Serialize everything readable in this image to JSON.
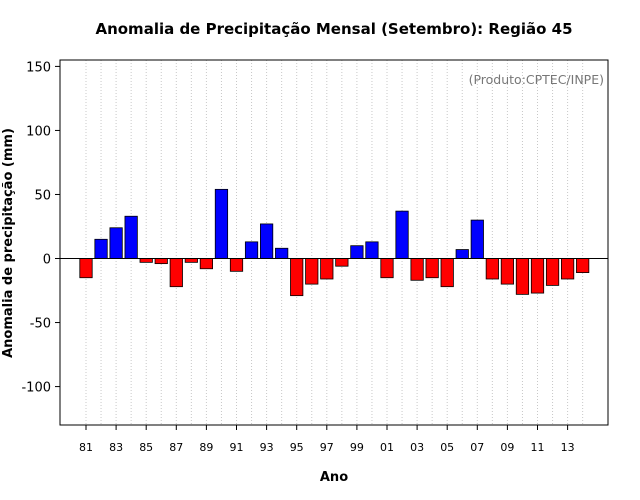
{
  "chart_data": {
    "type": "bar",
    "title": "Anomalia de Precipitação Mensal (Setembro): Região 45",
    "xlabel": "Ano",
    "ylabel": "Anomalia de precipitação (mm)",
    "annotation": "(Produto:CPTEC/INPE)",
    "ylim": [
      -130,
      155
    ],
    "yticks": [
      150,
      100,
      50,
      0,
      -50,
      -100
    ],
    "categories": [
      "81",
      "82",
      "83",
      "84",
      "85",
      "86",
      "87",
      "88",
      "89",
      "90",
      "91",
      "92",
      "93",
      "94",
      "95",
      "96",
      "97",
      "98",
      "99",
      "00",
      "01",
      "02",
      "03",
      "04",
      "05",
      "06",
      "07",
      "08",
      "09",
      "10",
      "11",
      "12",
      "13",
      "14"
    ],
    "xtick_labels": [
      "81",
      "83",
      "85",
      "87",
      "89",
      "91",
      "93",
      "95",
      "97",
      "99",
      "01",
      "03",
      "05",
      "07",
      "09",
      "11",
      "13"
    ],
    "values": [
      -15,
      15,
      24,
      33,
      -3,
      -4,
      -22,
      -3,
      -8,
      54,
      -10,
      13,
      27,
      8,
      -29,
      -20,
      -16,
      -6,
      10,
      13,
      -15,
      37,
      -17,
      -15,
      -22,
      7,
      30,
      -16,
      -20,
      -28,
      -27,
      -21,
      -16,
      -11
    ],
    "colors": {
      "positive": "#0000ff",
      "negative": "#ff0000",
      "zero_line": "#000000",
      "grid": "#c8c8c8"
    },
    "grid": true
  }
}
